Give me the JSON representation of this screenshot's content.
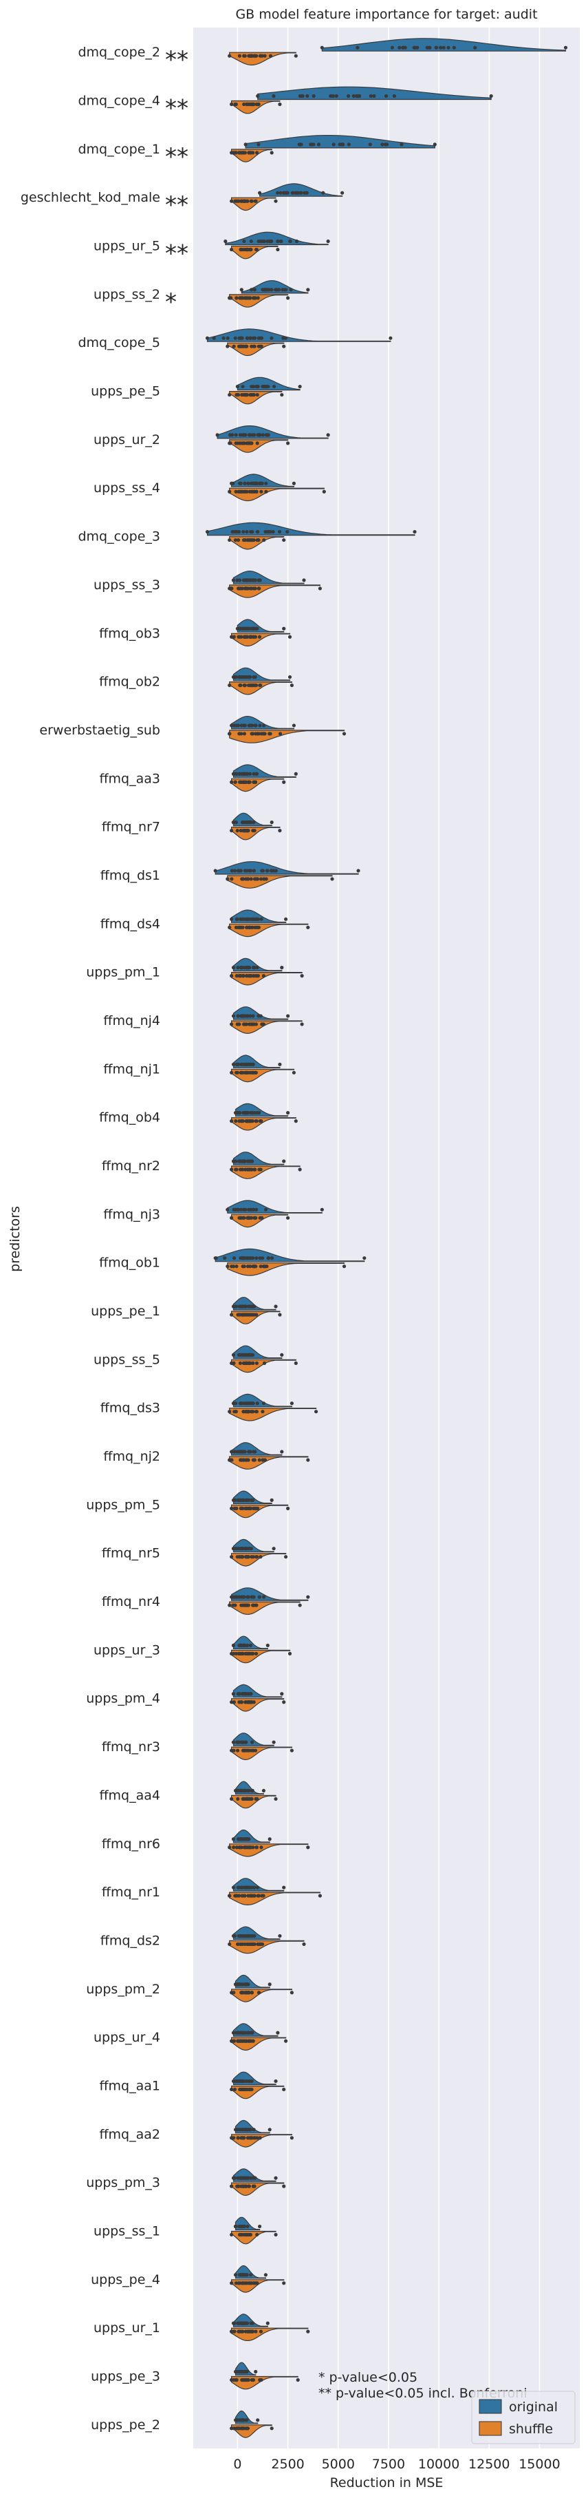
{
  "chart_data": {
    "type": "violin",
    "title": "GB model feature importance for target: audit",
    "xlabel": "Reduction in MSE",
    "ylabel": "predictors",
    "xlim": [
      -2200,
      17000
    ],
    "xticks": [
      0,
      2500,
      5000,
      7500,
      10000,
      12500,
      15000
    ],
    "grid": true,
    "legend": {
      "placement": "bottom-right",
      "entries": [
        {
          "name": "original",
          "color": "#3274a1"
        },
        {
          "name": "shuffle",
          "color": "#e1812c"
        }
      ]
    },
    "annotations": [
      "*  p-value<0.05",
      "** p-value<0.05 incl. Bonferroni"
    ],
    "predictors": [
      {
        "name": "dmq_cope_2",
        "sig": "**",
        "original": {
          "min": 4200,
          "max": 16300,
          "center": 9300,
          "spread": 3000
        },
        "shuffle": {
          "min": -400,
          "max": 2900,
          "center": 700,
          "spread": 700
        }
      },
      {
        "name": "dmq_cope_4",
        "sig": "**",
        "original": {
          "min": 1000,
          "max": 12600,
          "center": 5500,
          "spread": 3500
        },
        "shuffle": {
          "min": -300,
          "max": 2100,
          "center": 500,
          "spread": 500
        }
      },
      {
        "name": "dmq_cope_1",
        "sig": "**",
        "original": {
          "min": 400,
          "max": 9800,
          "center": 4500,
          "spread": 2800
        },
        "shuffle": {
          "min": -300,
          "max": 1700,
          "center": 400,
          "spread": 450
        }
      },
      {
        "name": "geschlecht_kod_male",
        "sig": "**",
        "original": {
          "min": 1100,
          "max": 5200,
          "center": 2800,
          "spread": 900
        },
        "shuffle": {
          "min": -300,
          "max": 1900,
          "center": 400,
          "spread": 450
        }
      },
      {
        "name": "upps_ur_5",
        "sig": "**",
        "original": {
          "min": -600,
          "max": 4500,
          "center": 1500,
          "spread": 1000
        },
        "shuffle": {
          "min": -300,
          "max": 2000,
          "center": 400,
          "spread": 450
        }
      },
      {
        "name": "upps_ss_2",
        "sig": "*",
        "original": {
          "min": 200,
          "max": 3500,
          "center": 1700,
          "spread": 700
        },
        "shuffle": {
          "min": -400,
          "max": 2500,
          "center": 500,
          "spread": 550
        }
      },
      {
        "name": "dmq_cope_5",
        "sig": "",
        "original": {
          "min": -1500,
          "max": 7600,
          "center": 600,
          "spread": 1300
        },
        "shuffle": {
          "min": -500,
          "max": 2300,
          "center": 500,
          "spread": 550
        }
      },
      {
        "name": "upps_pe_5",
        "sig": "",
        "original": {
          "min": 0,
          "max": 3100,
          "center": 1100,
          "spread": 800
        },
        "shuffle": {
          "min": -400,
          "max": 2200,
          "center": 500,
          "spread": 500
        }
      },
      {
        "name": "upps_ur_2",
        "sig": "",
        "original": {
          "min": -1000,
          "max": 4500,
          "center": 600,
          "spread": 1000
        },
        "shuffle": {
          "min": -400,
          "max": 2500,
          "center": 500,
          "spread": 550
        }
      },
      {
        "name": "upps_ss_4",
        "sig": "",
        "original": {
          "min": -300,
          "max": 2800,
          "center": 800,
          "spread": 700
        },
        "shuffle": {
          "min": -400,
          "max": 4300,
          "center": 500,
          "spread": 650
        }
      },
      {
        "name": "dmq_cope_3",
        "sig": "",
        "original": {
          "min": -1500,
          "max": 8800,
          "center": 800,
          "spread": 1500
        },
        "shuffle": {
          "min": -400,
          "max": 2300,
          "center": 500,
          "spread": 550
        }
      },
      {
        "name": "upps_ss_3",
        "sig": "",
        "original": {
          "min": -200,
          "max": 3300,
          "center": 600,
          "spread": 650
        },
        "shuffle": {
          "min": -400,
          "max": 4100,
          "center": 500,
          "spread": 650
        }
      },
      {
        "name": "ffmq_ob3",
        "sig": "",
        "original": {
          "min": 0,
          "max": 2300,
          "center": 500,
          "spread": 450
        },
        "shuffle": {
          "min": -300,
          "max": 2600,
          "center": 500,
          "spread": 550
        }
      },
      {
        "name": "ffmq_ob2",
        "sig": "",
        "original": {
          "min": -200,
          "max": 2600,
          "center": 400,
          "spread": 500
        },
        "shuffle": {
          "min": -400,
          "max": 2700,
          "center": 500,
          "spread": 550
        }
      },
      {
        "name": "erwerbstaetig_sub",
        "sig": "",
        "original": {
          "min": -300,
          "max": 2800,
          "center": 500,
          "spread": 600
        },
        "shuffle": {
          "min": -400,
          "max": 5300,
          "center": 700,
          "spread": 1100
        }
      },
      {
        "name": "ffmq_aa3",
        "sig": "",
        "original": {
          "min": -200,
          "max": 2900,
          "center": 500,
          "spread": 600
        },
        "shuffle": {
          "min": -300,
          "max": 2300,
          "center": 400,
          "spread": 500
        }
      },
      {
        "name": "ffmq_nr7",
        "sig": "",
        "original": {
          "min": -200,
          "max": 1700,
          "center": 300,
          "spread": 400
        },
        "shuffle": {
          "min": -300,
          "max": 2100,
          "center": 400,
          "spread": 450
        }
      },
      {
        "name": "ffmq_ds1",
        "sig": "",
        "original": {
          "min": -1100,
          "max": 6000,
          "center": 700,
          "spread": 1100
        },
        "shuffle": {
          "min": -500,
          "max": 4700,
          "center": 600,
          "spread": 800
        }
      },
      {
        "name": "ffmq_ds4",
        "sig": "",
        "original": {
          "min": -300,
          "max": 2400,
          "center": 500,
          "spread": 600
        },
        "shuffle": {
          "min": -400,
          "max": 3500,
          "center": 500,
          "spread": 650
        }
      },
      {
        "name": "upps_pm_1",
        "sig": "",
        "original": {
          "min": -200,
          "max": 2200,
          "center": 400,
          "spread": 450
        },
        "shuffle": {
          "min": -300,
          "max": 3200,
          "center": 500,
          "spread": 600
        }
      },
      {
        "name": "ffmq_nj4",
        "sig": "",
        "original": {
          "min": -200,
          "max": 2500,
          "center": 400,
          "spread": 500
        },
        "shuffle": {
          "min": -300,
          "max": 3200,
          "center": 500,
          "spread": 600
        }
      },
      {
        "name": "ffmq_nj1",
        "sig": "",
        "original": {
          "min": -200,
          "max": 2100,
          "center": 400,
          "spread": 450
        },
        "shuffle": {
          "min": -300,
          "max": 2800,
          "center": 500,
          "spread": 550
        }
      },
      {
        "name": "ffmq_ob4",
        "sig": "",
        "original": {
          "min": -100,
          "max": 2500,
          "center": 500,
          "spread": 550
        },
        "shuffle": {
          "min": -300,
          "max": 2900,
          "center": 500,
          "spread": 550
        }
      },
      {
        "name": "ffmq_nr2",
        "sig": "",
        "original": {
          "min": -200,
          "max": 2300,
          "center": 400,
          "spread": 500
        },
        "shuffle": {
          "min": -300,
          "max": 3100,
          "center": 500,
          "spread": 600
        }
      },
      {
        "name": "ffmq_nj3",
        "sig": "",
        "original": {
          "min": -500,
          "max": 4200,
          "center": 500,
          "spread": 750
        },
        "shuffle": {
          "min": -300,
          "max": 2500,
          "center": 500,
          "spread": 550
        }
      },
      {
        "name": "ffmq_ob1",
        "sig": "",
        "original": {
          "min": -1100,
          "max": 6300,
          "center": 600,
          "spread": 1100
        },
        "shuffle": {
          "min": -500,
          "max": 5300,
          "center": 600,
          "spread": 900
        }
      },
      {
        "name": "upps_pe_1",
        "sig": "",
        "original": {
          "min": -200,
          "max": 1900,
          "center": 300,
          "spread": 400
        },
        "shuffle": {
          "min": -300,
          "max": 2100,
          "center": 400,
          "spread": 450
        }
      },
      {
        "name": "upps_ss_5",
        "sig": "",
        "original": {
          "min": -200,
          "max": 2200,
          "center": 400,
          "spread": 450
        },
        "shuffle": {
          "min": -300,
          "max": 2900,
          "center": 500,
          "spread": 550
        }
      },
      {
        "name": "ffmq_ds3",
        "sig": "",
        "original": {
          "min": -200,
          "max": 2700,
          "center": 500,
          "spread": 550
        },
        "shuffle": {
          "min": -400,
          "max": 3900,
          "center": 600,
          "spread": 750
        }
      },
      {
        "name": "ffmq_nj2",
        "sig": "",
        "original": {
          "min": -300,
          "max": 2200,
          "center": 400,
          "spread": 500
        },
        "shuffle": {
          "min": -400,
          "max": 3500,
          "center": 500,
          "spread": 650
        }
      },
      {
        "name": "upps_pm_5",
        "sig": "",
        "original": {
          "min": -200,
          "max": 1700,
          "center": 300,
          "spread": 400
        },
        "shuffle": {
          "min": -300,
          "max": 2500,
          "center": 400,
          "spread": 500
        }
      },
      {
        "name": "ffmq_nr5",
        "sig": "",
        "original": {
          "min": -200,
          "max": 1800,
          "center": 300,
          "spread": 400
        },
        "shuffle": {
          "min": -300,
          "max": 2400,
          "center": 400,
          "spread": 500
        }
      },
      {
        "name": "ffmq_nr4",
        "sig": "",
        "original": {
          "min": -300,
          "max": 3500,
          "center": 500,
          "spread": 650
        },
        "shuffle": {
          "min": -400,
          "max": 3100,
          "center": 500,
          "spread": 600
        }
      },
      {
        "name": "upps_ur_3",
        "sig": "",
        "original": {
          "min": -200,
          "max": 1500,
          "center": 300,
          "spread": 350
        },
        "shuffle": {
          "min": -300,
          "max": 2600,
          "center": 400,
          "spread": 500
        }
      },
      {
        "name": "upps_pm_4",
        "sig": "",
        "original": {
          "min": -200,
          "max": 2200,
          "center": 300,
          "spread": 450
        },
        "shuffle": {
          "min": -300,
          "max": 2300,
          "center": 400,
          "spread": 450
        }
      },
      {
        "name": "ffmq_nr3",
        "sig": "",
        "original": {
          "min": -200,
          "max": 1800,
          "center": 300,
          "spread": 400
        },
        "shuffle": {
          "min": -300,
          "max": 2700,
          "center": 400,
          "spread": 500
        }
      },
      {
        "name": "ffmq_aa4",
        "sig": "",
        "original": {
          "min": -100,
          "max": 1300,
          "center": 300,
          "spread": 300
        },
        "shuffle": {
          "min": -300,
          "max": 1900,
          "center": 400,
          "spread": 450
        }
      },
      {
        "name": "ffmq_nr6",
        "sig": "",
        "original": {
          "min": -200,
          "max": 1600,
          "center": 300,
          "spread": 350
        },
        "shuffle": {
          "min": -400,
          "max": 3500,
          "center": 500,
          "spread": 650
        }
      },
      {
        "name": "ffmq_nr1",
        "sig": "",
        "original": {
          "min": -200,
          "max": 2300,
          "center": 400,
          "spread": 450
        },
        "shuffle": {
          "min": -400,
          "max": 4100,
          "center": 500,
          "spread": 700
        }
      },
      {
        "name": "ffmq_ds2",
        "sig": "",
        "original": {
          "min": -200,
          "max": 2100,
          "center": 400,
          "spread": 450
        },
        "shuffle": {
          "min": -400,
          "max": 3300,
          "center": 500,
          "spread": 650
        }
      },
      {
        "name": "upps_pm_2",
        "sig": "",
        "original": {
          "min": -100,
          "max": 1600,
          "center": 300,
          "spread": 350
        },
        "shuffle": {
          "min": -300,
          "max": 2700,
          "center": 400,
          "spread": 500
        }
      },
      {
        "name": "upps_ur_4",
        "sig": "",
        "original": {
          "min": -200,
          "max": 2000,
          "center": 300,
          "spread": 400
        },
        "shuffle": {
          "min": -300,
          "max": 2400,
          "center": 400,
          "spread": 500
        }
      },
      {
        "name": "ffmq_aa1",
        "sig": "",
        "original": {
          "min": -200,
          "max": 1900,
          "center": 300,
          "spread": 400
        },
        "shuffle": {
          "min": -300,
          "max": 2300,
          "center": 400,
          "spread": 450
        }
      },
      {
        "name": "ffmq_aa2",
        "sig": "",
        "original": {
          "min": -100,
          "max": 1600,
          "center": 300,
          "spread": 350
        },
        "shuffle": {
          "min": -300,
          "max": 2700,
          "center": 400,
          "spread": 500
        }
      },
      {
        "name": "upps_pm_3",
        "sig": "",
        "original": {
          "min": -200,
          "max": 1900,
          "center": 300,
          "spread": 400
        },
        "shuffle": {
          "min": -300,
          "max": 2300,
          "center": 400,
          "spread": 450
        }
      },
      {
        "name": "upps_ss_1",
        "sig": "",
        "original": {
          "min": -100,
          "max": 1100,
          "center": 200,
          "spread": 300
        },
        "shuffle": {
          "min": -300,
          "max": 1900,
          "center": 400,
          "spread": 400
        }
      },
      {
        "name": "upps_pe_4",
        "sig": "",
        "original": {
          "min": -100,
          "max": 1400,
          "center": 300,
          "spread": 300
        },
        "shuffle": {
          "min": -300,
          "max": 2300,
          "center": 400,
          "spread": 450
        }
      },
      {
        "name": "upps_ur_1",
        "sig": "",
        "original": {
          "min": -200,
          "max": 1500,
          "center": 300,
          "spread": 350
        },
        "shuffle": {
          "min": -300,
          "max": 3500,
          "center": 500,
          "spread": 600
        }
      },
      {
        "name": "upps_pe_3",
        "sig": "",
        "original": {
          "min": -100,
          "max": 900,
          "center": 200,
          "spread": 250
        },
        "shuffle": {
          "min": -300,
          "max": 3000,
          "center": 400,
          "spread": 550
        }
      },
      {
        "name": "upps_pe_2",
        "sig": "",
        "original": {
          "min": -100,
          "max": 1000,
          "center": 200,
          "spread": 250
        },
        "shuffle": {
          "min": -300,
          "max": 1700,
          "center": 400,
          "spread": 400
        }
      }
    ]
  }
}
